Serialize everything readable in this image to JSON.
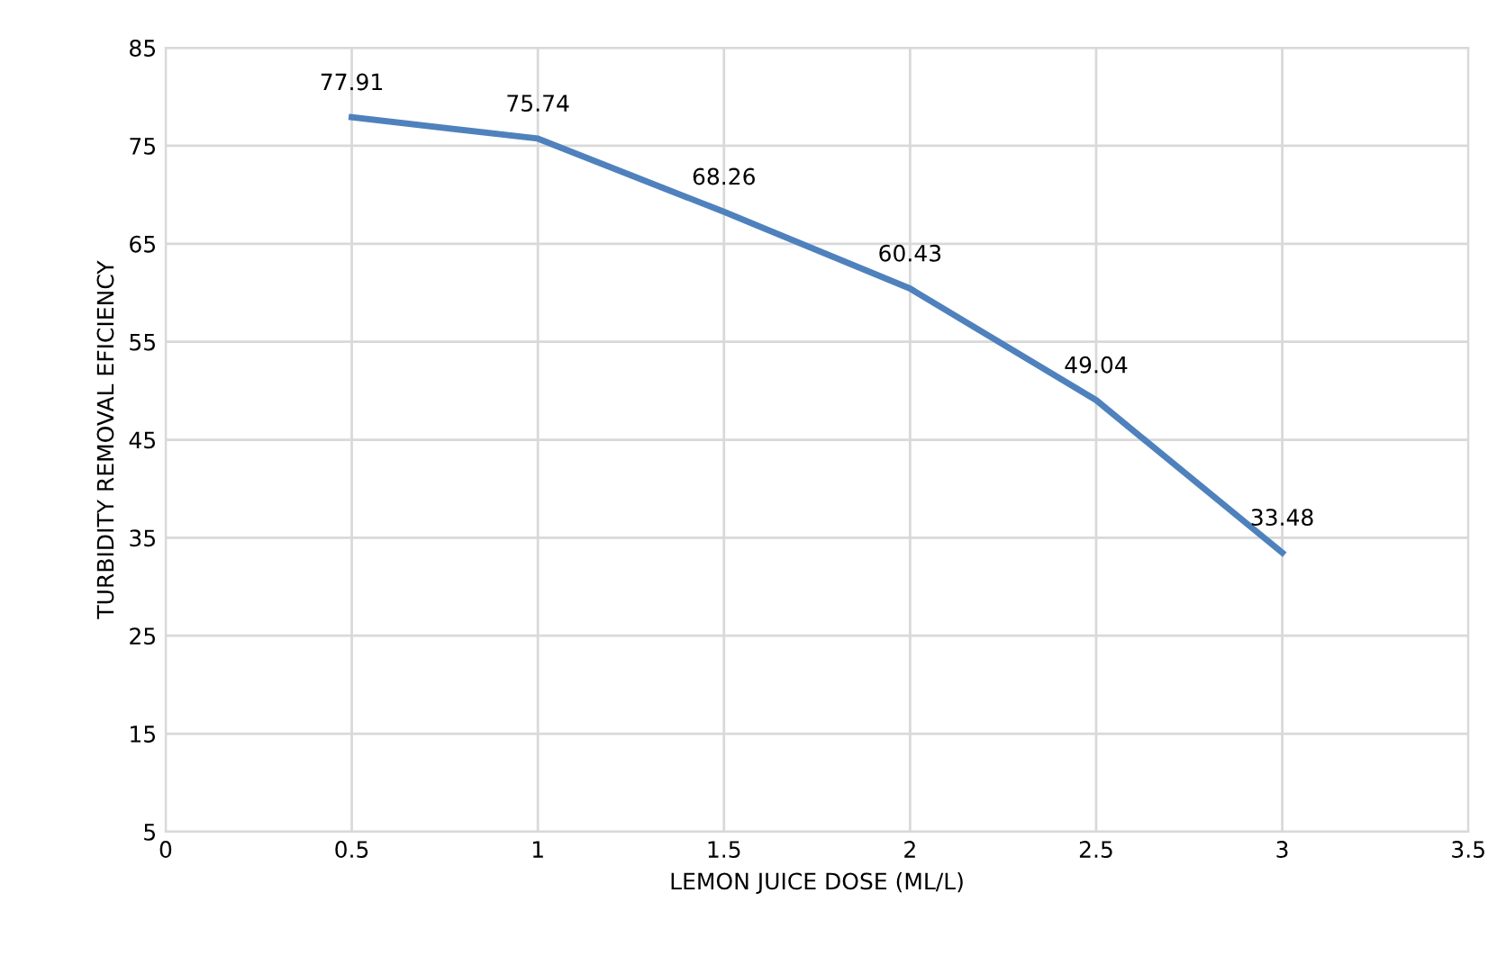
{
  "chart_data": {
    "type": "line",
    "xlabel": "LEMON JUICE DOSE (ML/L)",
    "ylabel": "TURBIDITY REMOVAL EFICIENCY",
    "x": [
      0.5,
      1,
      1.5,
      2,
      2.5,
      3
    ],
    "series": [
      {
        "color": "#4f81bd",
        "values": [
          77.91,
          75.74,
          68.26,
          60.43,
          49.04,
          33.48
        ]
      }
    ],
    "xlim": [
      0,
      3.5
    ],
    "xticks": [
      0,
      0.5,
      1,
      1.5,
      2,
      2.5,
      3,
      3.5
    ],
    "ylim": [
      5,
      85
    ],
    "yticks": [
      5,
      15,
      25,
      35,
      45,
      55,
      65,
      75,
      85
    ],
    "grid": true,
    "data_labels": true,
    "marker": "none",
    "line_style": "solid"
  }
}
